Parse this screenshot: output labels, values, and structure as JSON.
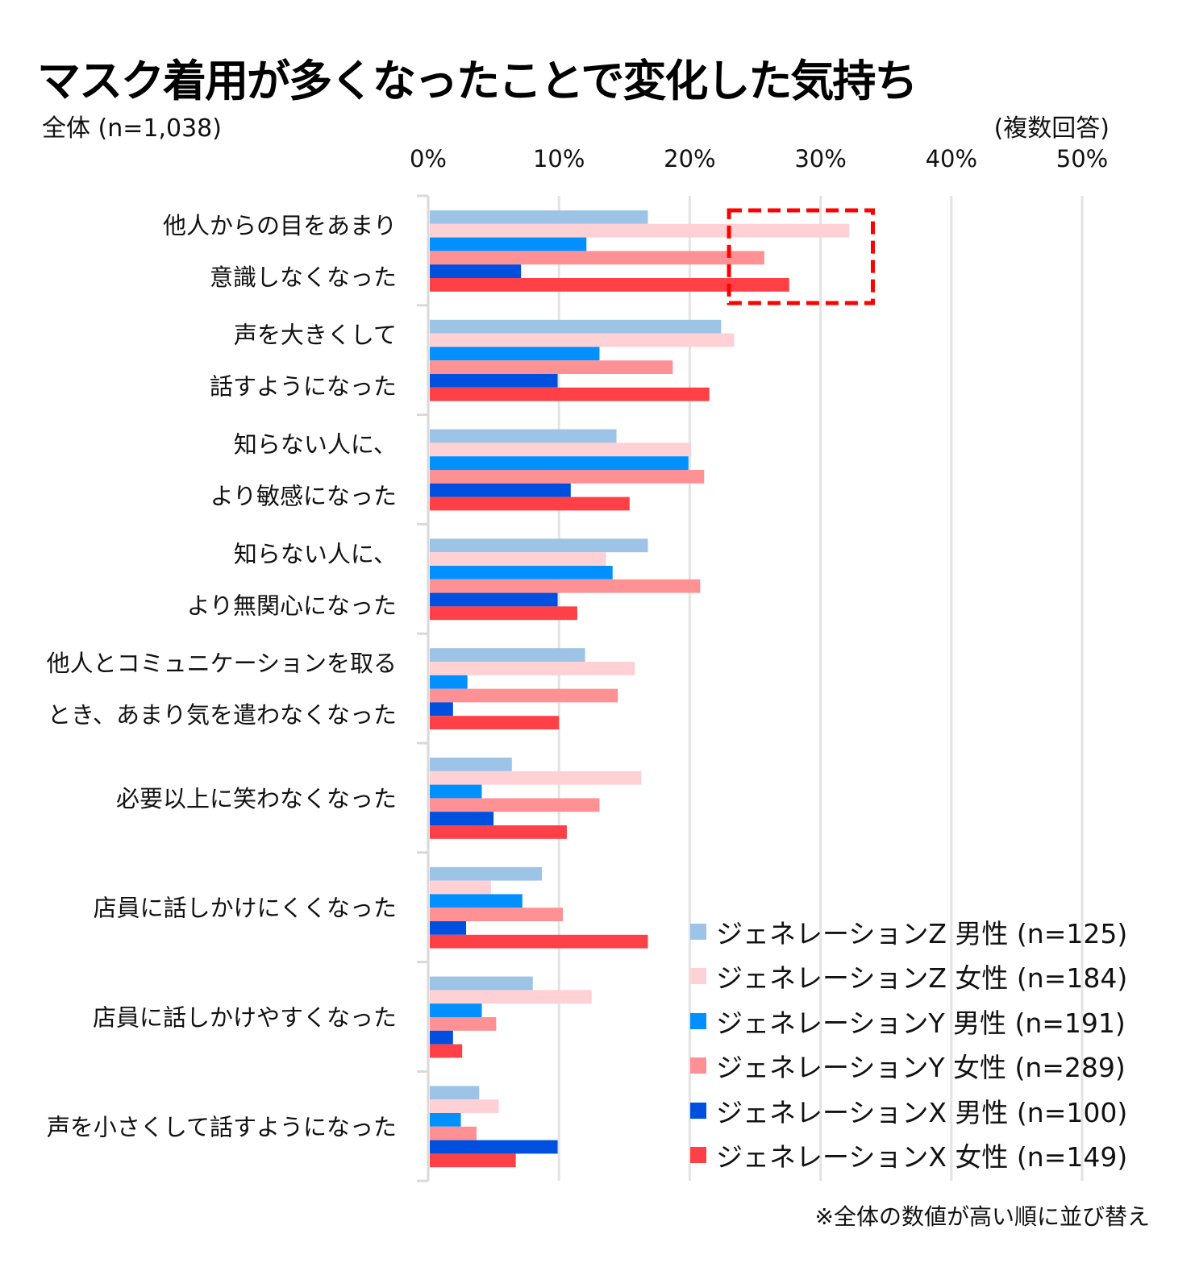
{
  "header": {
    "title": "マスク着用が多くなったことで変化した気持ち",
    "subtitle": "全体 (n=1,038)",
    "note": "(複数回答)"
  },
  "footnote": "※全体の数値が高い順に並び替え",
  "chart_data": {
    "type": "bar",
    "orientation": "horizontal",
    "title": "マスク着用が多くなったことで変化した気持ち",
    "xlabel": "",
    "ylabel": "",
    "xlim": [
      0,
      50
    ],
    "x_ticks": [
      "0%",
      "10%",
      "20%",
      "30%",
      "40%",
      "50%"
    ],
    "x_tick_values": [
      0,
      10,
      20,
      30,
      40,
      50
    ],
    "grid": true,
    "legend_position": "bottom-right",
    "categories": [
      [
        "他人からの目をあまり",
        "意識しなくなった"
      ],
      [
        "声を大きくして",
        "話すようになった"
      ],
      [
        "知らない人に、",
        "より敏感になった"
      ],
      [
        "知らない人に、",
        "より無関心になった"
      ],
      [
        "他人とコミュニケーションを取る",
        "とき、あまり気を遣わなくなった"
      ],
      [
        "必要以上に笑わなくなった"
      ],
      [
        "店員に話しかけにくくなった"
      ],
      [
        "店員に話しかけやすくなった"
      ],
      [
        "声を小さくして話すようになった"
      ]
    ],
    "series": [
      {
        "name": "ジェネレーションZ 男性 (n=125)",
        "color": "#9dc3e6",
        "values": [
          16.8,
          22.4,
          14.4,
          16.8,
          12.0,
          6.4,
          8.7,
          8.0,
          3.9
        ]
      },
      {
        "name": "ジェネレーションZ 女性 (n=184)",
        "color": "#ffd0d4",
        "values": [
          32.2,
          23.4,
          20.1,
          13.6,
          15.8,
          16.3,
          4.8,
          12.5,
          5.4
        ]
      },
      {
        "name": "ジェネレーションY 男性 (n=191)",
        "color": "#0090ff",
        "values": [
          12.1,
          13.1,
          19.9,
          14.1,
          3.0,
          4.1,
          7.2,
          4.1,
          2.5
        ]
      },
      {
        "name": "ジェネレーションY 女性 (n=289)",
        "color": "#ff9194",
        "values": [
          25.7,
          18.7,
          21.1,
          20.8,
          14.5,
          13.1,
          10.3,
          5.2,
          3.7
        ]
      },
      {
        "name": "ジェネレーションX 男性 (n=100)",
        "color": "#0050e0",
        "values": [
          7.1,
          9.9,
          10.9,
          9.9,
          1.9,
          5.0,
          2.9,
          1.9,
          9.9
        ]
      },
      {
        "name": "ジェネレーションX 女性 (n=149)",
        "color": "#ff4046",
        "values": [
          27.6,
          21.5,
          15.4,
          11.4,
          10.0,
          10.6,
          16.8,
          2.6,
          6.7
        ]
      }
    ],
    "annotations": [
      {
        "type": "dashed-box",
        "color": "#ff0000",
        "category_index": 0,
        "x_range": [
          23,
          34
        ]
      }
    ],
    "colors": {
      "grid": "#e3e3e3",
      "axis": "#d9d9d9"
    }
  }
}
